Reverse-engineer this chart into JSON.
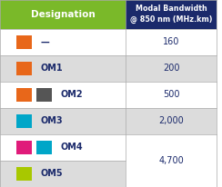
{
  "header_left": "Designation",
  "header_right": "Modal Bandwidth\n@ 850 nm (MHz.km)",
  "header_left_bg": "#7AB929",
  "header_right_bg": "#1B2A6B",
  "header_text_color": "#FFFFFF",
  "rows": [
    {
      "colors": [
        "#E8671A"
      ],
      "label": "—",
      "bandwidth": "160",
      "bg": "#FFFFFF",
      "span": false
    },
    {
      "colors": [
        "#E8671A"
      ],
      "label": "OM1",
      "bandwidth": "200",
      "bg": "#DCDCDC",
      "span": false
    },
    {
      "colors": [
        "#E8671A",
        "#555555"
      ],
      "label": "OM2",
      "bandwidth": "500",
      "bg": "#FFFFFF",
      "span": false
    },
    {
      "colors": [
        "#00A6C8"
      ],
      "label": "OM3",
      "bandwidth": "2,000",
      "bg": "#DCDCDC",
      "span": false
    },
    {
      "colors": [
        "#E01B7A",
        "#00A6C8"
      ],
      "label": "OM4",
      "bandwidth": "",
      "bg": "#FFFFFF",
      "span": true
    },
    {
      "colors": [
        "#A8C800"
      ],
      "label": "OM5",
      "bandwidth": "4,700",
      "bg": "#DCDCDC",
      "span": true
    }
  ],
  "label_color": "#1B2A6B",
  "bandwidth_color": "#1B2A6B",
  "col_split": 0.58,
  "figsize": [
    2.44,
    2.06
  ],
  "dpi": 100
}
